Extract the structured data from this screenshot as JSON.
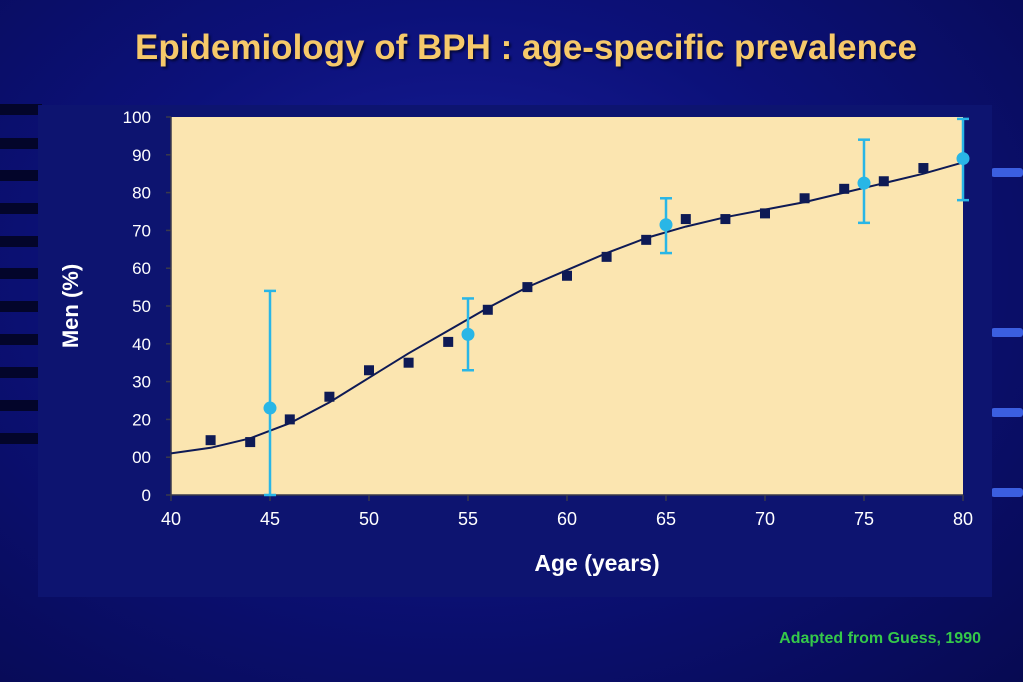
{
  "slide": {
    "title": "Epidemiology of BPH : age-specific prevalence",
    "source": "Adapted from Guess, 1990"
  },
  "colors": {
    "title": "#f6c96a",
    "plot_background": "#fbe5b0",
    "axis_text": "#ffffff",
    "square_markers": "#0e1a55",
    "error_markers": "#29b6e6",
    "curve": "#0e1a55",
    "source": "#35c84a"
  },
  "chart_data": {
    "type": "scatter",
    "title": "",
    "xlabel": "Age (years)",
    "ylabel": "Men (%)",
    "xlim": [
      40,
      80
    ],
    "ylim": [
      0,
      100
    ],
    "x_ticks": [
      "40",
      "45",
      "50",
      "55",
      "60",
      "65",
      "70",
      "75",
      "80"
    ],
    "y_ticks": [
      "0",
      "00",
      "20",
      "30",
      "40",
      "50",
      "60",
      "70",
      "80",
      "90",
      "100"
    ],
    "grid": false,
    "series": [
      {
        "marker": "square",
        "x": [
          42,
          44,
          46,
          48,
          50,
          52,
          54,
          56,
          58,
          60,
          62,
          64,
          66,
          68,
          70,
          72,
          74,
          76,
          78
        ],
        "y": [
          14.5,
          14,
          20,
          26,
          33,
          35,
          40.5,
          49,
          55,
          58,
          63,
          67.5,
          73,
          73,
          74.5,
          78.5,
          81,
          83,
          86.5
        ]
      },
      {
        "marker": "circle",
        "x": [
          45,
          55,
          65,
          75,
          80
        ],
        "y": [
          23,
          42.5,
          71.5,
          82.5,
          89
        ],
        "y_low": [
          0,
          33,
          64,
          72,
          78
        ],
        "y_high": [
          54,
          52,
          78.5,
          94,
          99.5
        ]
      },
      {
        "marker": "line",
        "x": [
          40,
          42,
          44,
          46,
          48,
          50,
          52,
          54,
          56,
          58,
          60,
          62,
          64,
          66,
          68,
          70,
          72,
          74,
          76,
          78,
          80
        ],
        "y": [
          11,
          12.5,
          15,
          19,
          24.5,
          31,
          37.5,
          43.5,
          49.5,
          55,
          59.5,
          64,
          68,
          71,
          73.5,
          75.5,
          77.5,
          80,
          82.5,
          85,
          88
        ]
      }
    ]
  }
}
